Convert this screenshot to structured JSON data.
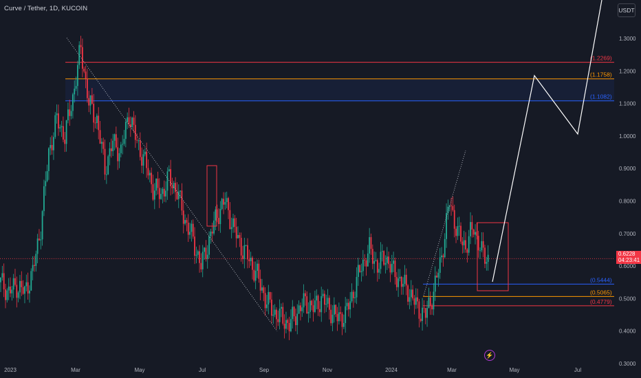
{
  "header": {
    "title": "Curve / Tether, 1D, KUCOIN",
    "currency": "USDT"
  },
  "price_tag": {
    "price": "0.6228",
    "countdown": "04:23:41"
  },
  "colors": {
    "up": "#22ab94",
    "down": "#f23645",
    "bg": "#161a25",
    "grid": "#1f2330",
    "axis_text": "#b2b5be"
  },
  "chart_data": {
    "type": "candlestick",
    "title": "Curve / Tether, 1D, KUCOIN",
    "ylim": [
      0.3,
      1.4
    ],
    "y_ticks": [
      0.3,
      0.4,
      0.5,
      0.6,
      0.7,
      0.8,
      0.9,
      1.0,
      1.1,
      1.2,
      1.3
    ],
    "y_tick_labels": [
      "0.3000",
      "0.4000",
      "0.5000",
      "0.6000",
      "0.7000",
      "0.8000",
      "0.9000",
      "1.0000",
      "1.1000",
      "1.2000",
      "1.3000"
    ],
    "x_labels": [
      "2023",
      "Mar",
      "May",
      "Jul",
      "Sep",
      "Nov",
      "2024",
      "Mar",
      "May",
      "Jul"
    ],
    "close_path": [
      [
        0,
        0.55
      ],
      [
        5,
        0.52
      ],
      [
        10,
        0.54
      ],
      [
        15,
        0.52
      ],
      [
        20,
        0.58
      ],
      [
        25,
        0.72
      ],
      [
        30,
        0.95
      ],
      [
        35,
        1.05
      ],
      [
        40,
        1.0
      ],
      [
        45,
        1.12
      ],
      [
        50,
        1.27
      ],
      [
        55,
        1.1
      ],
      [
        60,
        1.05
      ],
      [
        65,
        0.9
      ],
      [
        70,
        0.98
      ],
      [
        75,
        0.95
      ],
      [
        80,
        1.07
      ],
      [
        85,
        0.98
      ],
      [
        90,
        0.92
      ],
      [
        95,
        0.84
      ],
      [
        100,
        0.82
      ],
      [
        105,
        0.87
      ],
      [
        110,
        0.83
      ],
      [
        115,
        0.74
      ],
      [
        120,
        0.68
      ],
      [
        125,
        0.6
      ],
      [
        130,
        0.68
      ],
      [
        135,
        0.76
      ],
      [
        140,
        0.8
      ],
      [
        145,
        0.72
      ],
      [
        150,
        0.66
      ],
      [
        155,
        0.62
      ],
      [
        160,
        0.57
      ],
      [
        165,
        0.5
      ],
      [
        170,
        0.46
      ],
      [
        175,
        0.44
      ],
      [
        180,
        0.42
      ],
      [
        185,
        0.46
      ],
      [
        190,
        0.49
      ],
      [
        195,
        0.47
      ],
      [
        200,
        0.5
      ],
      [
        205,
        0.47
      ],
      [
        210,
        0.44
      ],
      [
        215,
        0.45
      ],
      [
        220,
        0.52
      ],
      [
        225,
        0.6
      ],
      [
        230,
        0.65
      ],
      [
        235,
        0.6
      ],
      [
        240,
        0.63
      ],
      [
        245,
        0.58
      ],
      [
        250,
        0.55
      ],
      [
        255,
        0.52
      ],
      [
        260,
        0.47
      ],
      [
        265,
        0.45
      ],
      [
        270,
        0.52
      ],
      [
        275,
        0.63
      ],
      [
        280,
        0.8
      ],
      [
        285,
        0.7
      ],
      [
        290,
        0.66
      ],
      [
        295,
        0.72
      ],
      [
        300,
        0.64
      ],
      [
        305,
        0.62
      ]
    ],
    "x_date_range": [
      "2022-12-20",
      "2024-04-08"
    ],
    "levels": [
      {
        "label": "(1.2269)",
        "value": 1.2269,
        "color": "#f23645"
      },
      {
        "label": "(1.1758)",
        "value": 1.1758,
        "color": "#ff9800"
      },
      {
        "label": "(1.1082)",
        "value": 1.1082,
        "color": "#2962ff"
      },
      {
        "label": "(0.5444)",
        "value": 0.5444,
        "color": "#2962ff"
      },
      {
        "label": "(0.5065)",
        "value": 0.5065,
        "color": "#ff9800"
      },
      {
        "label": "(0.4779)",
        "value": 0.4779,
        "color": "#f23645"
      }
    ],
    "current_price": 0.6228
  }
}
